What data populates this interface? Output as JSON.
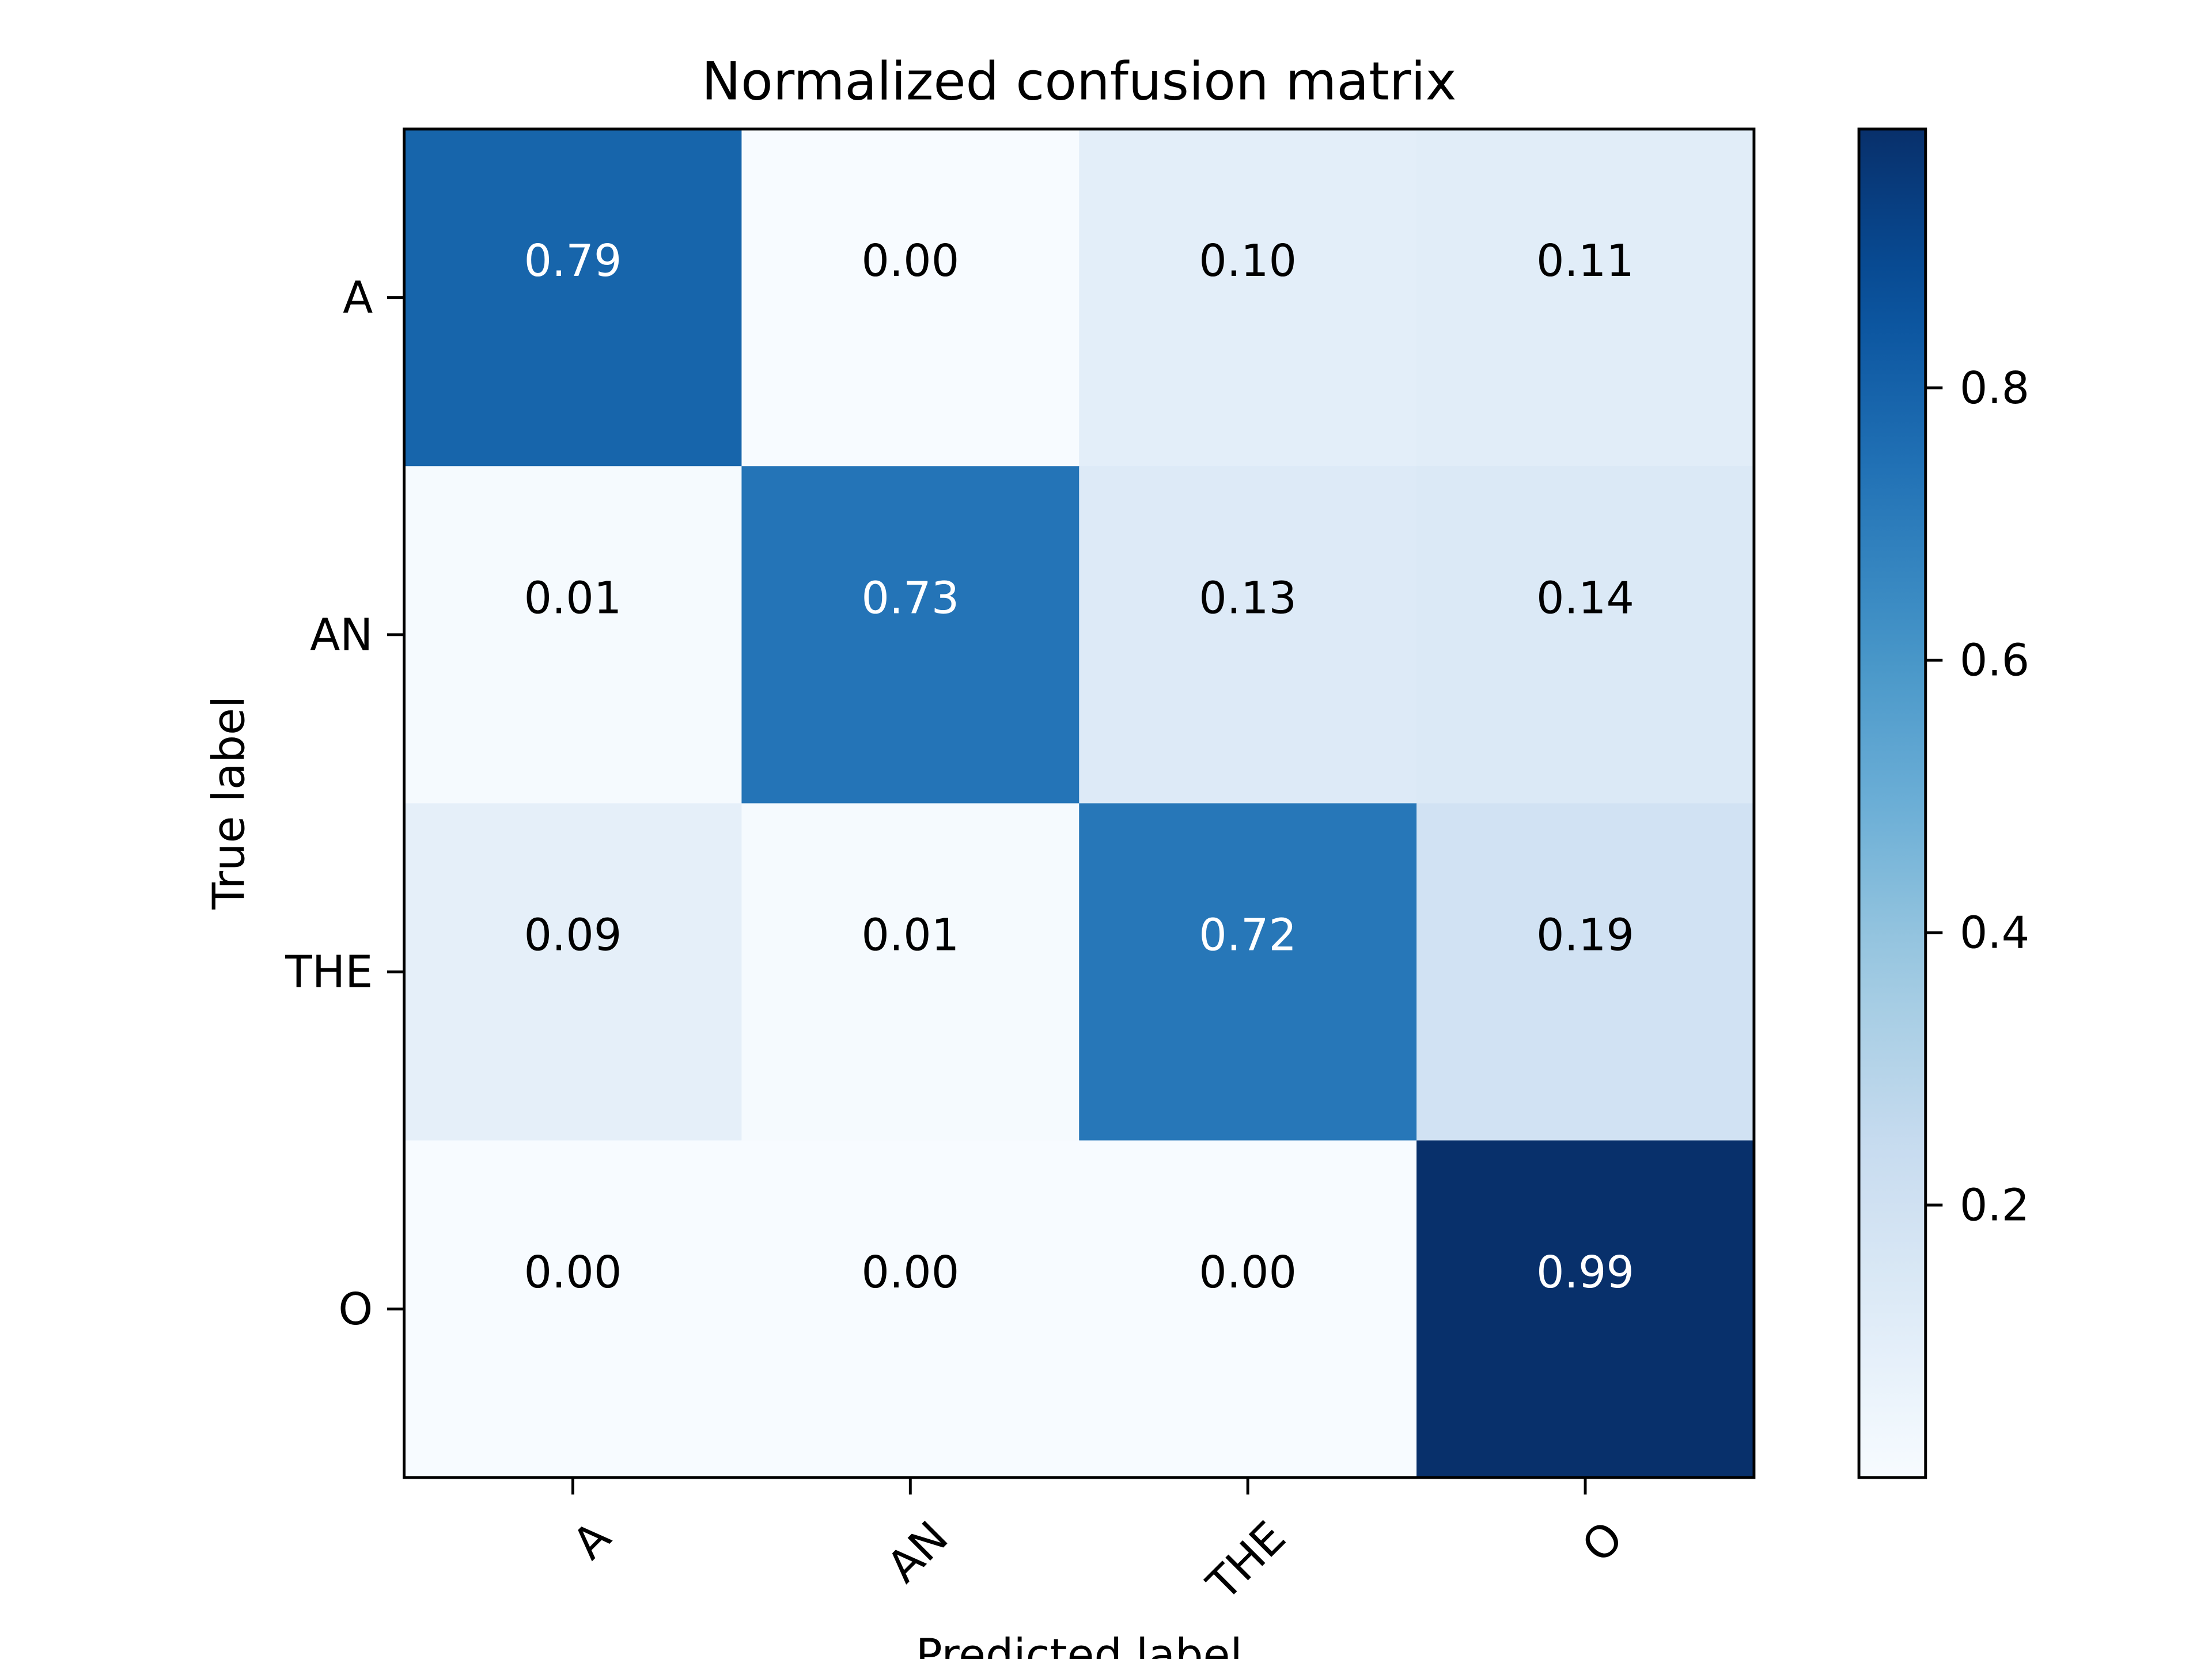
{
  "chart_data": {
    "type": "heatmap",
    "title": "Normalized confusion matrix",
    "xlabel": "Predicted label",
    "ylabel": "True label",
    "x_categories": [
      "A",
      "AN",
      "THE",
      "O"
    ],
    "y_categories": [
      "A",
      "AN",
      "THE",
      "O"
    ],
    "values": [
      [
        0.79,
        0.0,
        0.1,
        0.11
      ],
      [
        0.01,
        0.73,
        0.13,
        0.14
      ],
      [
        0.09,
        0.01,
        0.72,
        0.19
      ],
      [
        0.0,
        0.0,
        0.0,
        0.99
      ]
    ],
    "value_labels": [
      [
        "0.79",
        "0.00",
        "0.10",
        "0.11"
      ],
      [
        "0.01",
        "0.73",
        "0.13",
        "0.14"
      ],
      [
        "0.09",
        "0.01",
        "0.72",
        "0.19"
      ],
      [
        "0.00",
        "0.00",
        "0.00",
        "0.99"
      ]
    ],
    "colormap": "Blues",
    "color_range": [
      0.0,
      0.99
    ],
    "colorbar": {
      "ticks": [
        0.2,
        0.4,
        0.6,
        0.8
      ],
      "tick_labels": [
        "0.2",
        "0.4",
        "0.6",
        "0.8"
      ]
    },
    "grid": false,
    "text_colors": {
      "light": "#ffffff",
      "dark": "#000000"
    }
  }
}
